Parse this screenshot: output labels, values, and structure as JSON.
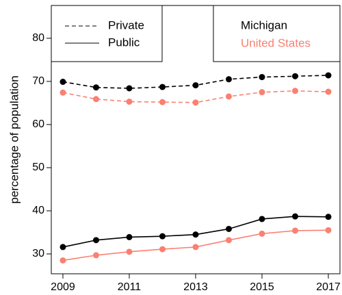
{
  "chart_data": {
    "type": "line",
    "y_label": "percentage of population",
    "x": [
      2009,
      2010,
      2011,
      2012,
      2013,
      2014,
      2015,
      2016,
      2017
    ],
    "xlim": [
      2008.65,
      2017.35
    ],
    "xticks": [
      2009,
      2011,
      2013,
      2015,
      2017
    ],
    "ylim": [
      25.4,
      87.6
    ],
    "yticks": [
      30,
      40,
      50,
      60,
      70,
      80
    ],
    "legend": {
      "linetypes": [
        {
          "label": "Private",
          "dash": "dashed"
        },
        {
          "label": "Public",
          "dash": "solid"
        }
      ],
      "colors": [
        {
          "label": "Michigan",
          "color": "#000000"
        },
        {
          "label": "United States",
          "color": "#fa8072"
        }
      ]
    },
    "series": [
      {
        "linetype": 0,
        "color": 0,
        "values": [
          69.9,
          68.6,
          68.4,
          68.7,
          69.1,
          70.5,
          71.0,
          71.2,
          71.4
        ]
      },
      {
        "linetype": 0,
        "color": 1,
        "values": [
          67.4,
          65.9,
          65.3,
          65.2,
          65.1,
          66.5,
          67.5,
          67.8,
          67.6
        ]
      },
      {
        "linetype": 1,
        "color": 0,
        "values": [
          31.6,
          33.2,
          33.9,
          34.1,
          34.5,
          35.8,
          38.1,
          38.7,
          38.6
        ]
      },
      {
        "linetype": 1,
        "color": 1,
        "values": [
          28.5,
          29.7,
          30.5,
          31.1,
          31.6,
          33.2,
          34.7,
          35.4,
          35.5
        ]
      }
    ]
  }
}
